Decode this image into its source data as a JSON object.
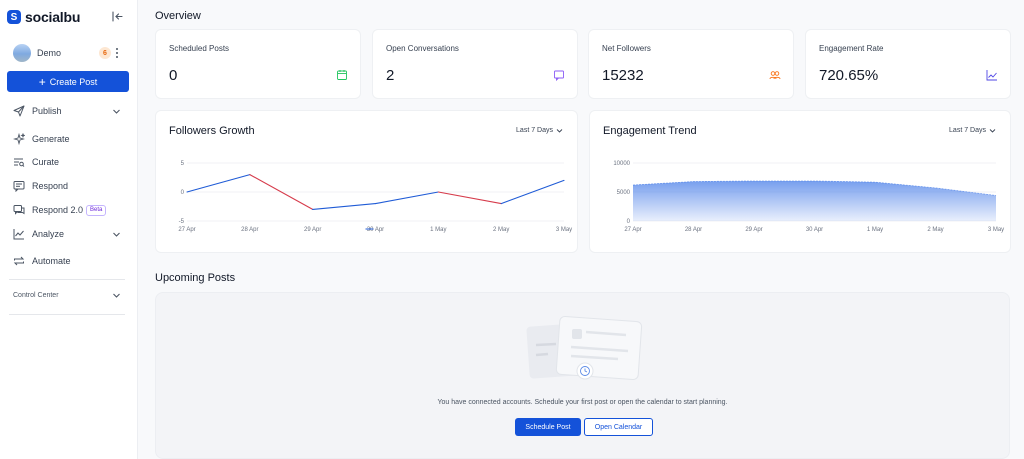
{
  "brand": {
    "name": "socialbu",
    "logo_letter": "S"
  },
  "account": {
    "name": "Demo",
    "badge_count": "6"
  },
  "sidebar": {
    "create_post_label": "Create Post",
    "items": [
      {
        "label": "Publish",
        "icon": "send-icon",
        "has_chevron": true
      },
      {
        "label": "Generate",
        "icon": "sparkles-icon"
      },
      {
        "label": "Curate",
        "icon": "curate-list-icon"
      },
      {
        "label": "Respond",
        "icon": "message-icon"
      },
      {
        "label": "Respond 2.0",
        "icon": "messages-icon",
        "badge": "Beta"
      },
      {
        "label": "Analyze",
        "icon": "line-chart-icon",
        "has_chevron": true
      },
      {
        "label": "Automate",
        "icon": "repeat-icon"
      }
    ],
    "control_center_label": "Control Center"
  },
  "overview": {
    "title": "Overview",
    "stats": [
      {
        "label": "Scheduled Posts",
        "value": "0",
        "icon": "calendar-icon",
        "color": "#22c55e"
      },
      {
        "label": "Open Conversations",
        "value": "2",
        "icon": "chat-icon",
        "color": "#8b5cf6"
      },
      {
        "label": "Net Followers",
        "value": "15232",
        "icon": "users-icon",
        "color": "#f97316"
      },
      {
        "label": "Engagement Rate",
        "value": "720.65%",
        "icon": "trend-icon",
        "color": "#4f46e5"
      }
    ]
  },
  "charts": {
    "followers": {
      "title": "Followers Growth",
      "range": "Last 7 Days"
    },
    "engagement": {
      "title": "Engagement Trend",
      "range": "Last 7 Days"
    }
  },
  "chart_data": [
    {
      "type": "line",
      "title": "Followers Growth",
      "categories": [
        "27 Apr",
        "28 Apr",
        "29 Apr",
        "30 Apr",
        "1 May",
        "2 May",
        "3 May"
      ],
      "values": [
        0,
        3,
        -3,
        -2,
        0,
        -2,
        2
      ],
      "yticks": [
        5,
        0,
        -5
      ],
      "ylim": [
        -5,
        5
      ],
      "grid": true,
      "colors": {
        "up": "#1f5bd6",
        "down": "#d63b4b"
      }
    },
    {
      "type": "area",
      "title": "Engagement Trend",
      "categories": [
        "27 Apr",
        "28 Apr",
        "29 Apr",
        "30 Apr",
        "1 May",
        "2 May",
        "3 May"
      ],
      "values": [
        6200,
        6800,
        6900,
        6900,
        6700,
        5700,
        4400
      ],
      "yticks": [
        10000,
        5000,
        0
      ],
      "ylim": [
        0,
        10000
      ],
      "grid": true,
      "color": "#4a7fe8"
    }
  ],
  "upcoming": {
    "title": "Upcoming Posts",
    "empty_text": "You have connected accounts. Schedule your first post or open the calendar to start planning.",
    "schedule_label": "Schedule Post",
    "calendar_label": "Open Calendar"
  }
}
